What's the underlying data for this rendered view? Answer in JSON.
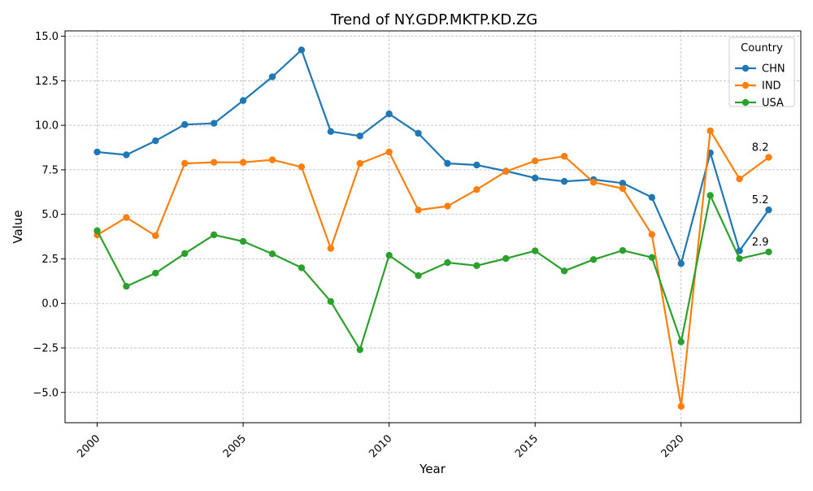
{
  "chart_data": {
    "type": "line",
    "title": "Trend of NY.GDP.MKTP.KD.ZG",
    "xlabel": "Year",
    "ylabel": "Value",
    "xlim": [
      1998.9,
      2024.1
    ],
    "ylim": [
      -6.7,
      15.3
    ],
    "x": [
      2000,
      2001,
      2002,
      2003,
      2004,
      2005,
      2006,
      2007,
      2008,
      2009,
      2010,
      2011,
      2012,
      2013,
      2014,
      2015,
      2016,
      2017,
      2018,
      2019,
      2020,
      2021,
      2022,
      2023
    ],
    "xticks": [
      2000,
      2005,
      2010,
      2015,
      2020
    ],
    "yticks": [
      -5.0,
      -2.5,
      0.0,
      2.5,
      5.0,
      7.5,
      10.0,
      12.5,
      15.0
    ],
    "grid": true,
    "legend": {
      "title": "Country",
      "placement": "top-right"
    },
    "series": [
      {
        "name": "CHN",
        "color": "#1f77b4",
        "values": [
          8.5,
          8.34,
          9.13,
          10.04,
          10.11,
          11.39,
          12.72,
          14.23,
          9.65,
          9.4,
          10.64,
          9.55,
          7.86,
          7.77,
          7.43,
          7.04,
          6.85,
          6.95,
          6.75,
          5.95,
          2.24,
          8.45,
          2.95,
          5.25
        ],
        "end_label": "5.2"
      },
      {
        "name": "IND",
        "color": "#ff7f0e",
        "values": [
          3.84,
          4.82,
          3.8,
          7.86,
          7.92,
          7.92,
          8.06,
          7.66,
          3.09,
          7.86,
          8.5,
          5.24,
          5.46,
          6.39,
          7.41,
          8.0,
          8.26,
          6.8,
          6.45,
          3.87,
          -5.78,
          9.69,
          6.99,
          8.2
        ],
        "end_label": "8.2"
      },
      {
        "name": "USA",
        "color": "#2ca02c",
        "values": [
          4.08,
          0.96,
          1.7,
          2.8,
          3.85,
          3.48,
          2.78,
          2.0,
          0.11,
          -2.6,
          2.7,
          1.56,
          2.29,
          2.12,
          2.52,
          2.95,
          1.82,
          2.46,
          2.97,
          2.58,
          -2.16,
          6.06,
          2.51,
          2.89
        ],
        "end_label": "2.9"
      }
    ]
  }
}
